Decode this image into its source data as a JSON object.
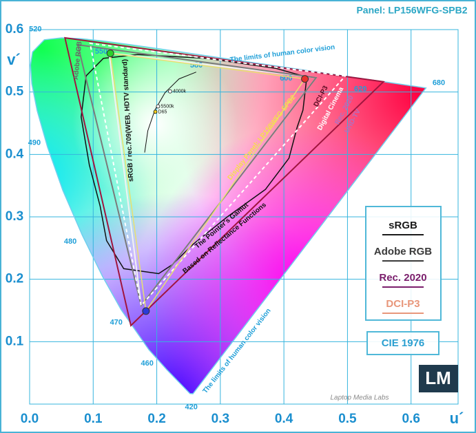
{
  "chart_data": {
    "type": "gamut",
    "title": "Panel: LP156WFG-SPB2",
    "x_label": "u´",
    "y_label": "v´",
    "xlim": [
      0,
      0.674
    ],
    "ylim": [
      0,
      0.6
    ],
    "xticks": [
      {
        "value": 0,
        "label": "0.0"
      },
      0.1,
      0.2,
      0.3,
      0.4,
      0.5,
      0.6
    ],
    "yticks": [
      0.1,
      0.2,
      0.3,
      0.4,
      0.5,
      0.6
    ],
    "grid": true,
    "locus": {
      "x": [
        0.2569,
        0.2522,
        0.216,
        0.1877,
        0.1441,
        0.1147,
        0.0828,
        0.0521,
        0.0282,
        0.0119,
        0.0035,
        0.0014,
        0.0046,
        0.0231,
        0.0501,
        0.0792,
        0.1127,
        0.1531,
        0.2026,
        0.2623,
        0.3315,
        0.4035,
        0.5203,
        0.583,
        0.6234
      ],
      "values": [
        0.0165,
        0.0169,
        0.055,
        0.0871,
        0.151,
        0.2044,
        0.2708,
        0.3427,
        0.4117,
        0.4698,
        0.5131,
        0.5431,
        0.564,
        0.5837,
        0.5868,
        0.5856,
        0.5821,
        0.5766,
        0.5694,
        0.5604,
        0.5501,
        0.5393,
        0.5219,
        0.5125,
        0.5065
      ],
      "wavelength_labels": [
        null,
        420,
        null,
        460,
        470,
        null,
        480,
        null,
        490,
        null,
        null,
        null,
        null,
        520,
        null,
        null,
        550,
        null,
        null,
        580,
        null,
        600,
        620,
        null,
        680
      ]
    },
    "gamuts": [
      {
        "name": "sRGB",
        "color": "#1a1a1a",
        "line_color": "#f2f2f2",
        "dashed": false,
        "x": [
          0.4507,
          0.125,
          0.1754
        ],
        "values": [
          0.5229,
          0.5625,
          0.1579
        ]
      },
      {
        "name": "Adobe RGB",
        "color": "#3a3a3a",
        "line_color": "#7a7a7a",
        "dashed": false,
        "x": [
          0.4507,
          0.0757,
          0.1754
        ],
        "values": [
          0.5229,
          0.5757,
          0.1579
        ]
      },
      {
        "name": "Rec. 2020",
        "color": "#7a1d6b",
        "line_color": "#a0153e",
        "dashed": false,
        "x": [
          0.5566,
          0.0556,
          0.1593
        ],
        "values": [
          0.5165,
          0.5868,
          0.1258
        ]
      },
      {
        "name": "DCI-P3",
        "color": "#e8967a",
        "line_color": "#ffffff",
        "dashed": true,
        "x": [
          0.4964,
          0.095,
          0.1754
        ],
        "values": [
          0.5256,
          0.578,
          0.1579
        ]
      }
    ],
    "panel": {
      "name": "Display Panel: LP156WFG-SPB2",
      "line_color": "#e8e070",
      "point_colors": [
        "#e8322a",
        "#2bd12b",
        "#2a3bd8"
      ],
      "x": [
        0.433,
        0.127,
        0.183
      ],
      "values": [
        0.521,
        0.562,
        0.149
      ]
    },
    "pointer_gamut": {
      "x": [
        0.116,
        0.17,
        0.278,
        0.387,
        0.436,
        0.43,
        0.421,
        0.408,
        0.371,
        0.311,
        0.257,
        0.224,
        0.203,
        0.148,
        0.121,
        0.111,
        0.094,
        0.081,
        0.089
      ],
      "values": [
        0.554,
        0.56,
        0.554,
        0.538,
        0.524,
        0.471,
        0.444,
        0.394,
        0.344,
        0.3,
        0.256,
        0.223,
        0.209,
        0.217,
        0.262,
        0.317,
        0.383,
        0.46,
        0.526
      ]
    },
    "planckian_locus": {
      "x": [
        0.262,
        0.235,
        0.213,
        0.197,
        0.186,
        0.181
      ],
      "values": [
        0.532,
        0.521,
        0.499,
        0.471,
        0.438,
        0.403
      ]
    },
    "white_points": {
      "labels": [
        "4000k",
        "5500k",
        "D65"
      ],
      "colors": [
        "#ffffff",
        "#ffffff",
        "#f5d020"
      ],
      "x": [
        0.221,
        0.202,
        0.1978
      ],
      "values": [
        0.501,
        0.477,
        0.4683
      ]
    },
    "annotations": {
      "locus_top": "The limits of human color vision",
      "locus_bottom": "The limits of human color vision",
      "srgb": "sRGB / rec.709(WEB, HDTV standard)",
      "adobe": "Adobe RGB",
      "dci_1": "DCI-P3",
      "dci_2": "Digital Cinema",
      "rec_1": "Rec. 2020",
      "rec_2": "UHD-TV",
      "pointer_1": "The Pointer's Gamut",
      "pointer_2": "Based on Reflectance Functions",
      "cie": "CIE 1976",
      "logo": "LM",
      "brand": "Laptop Media Labs"
    }
  }
}
